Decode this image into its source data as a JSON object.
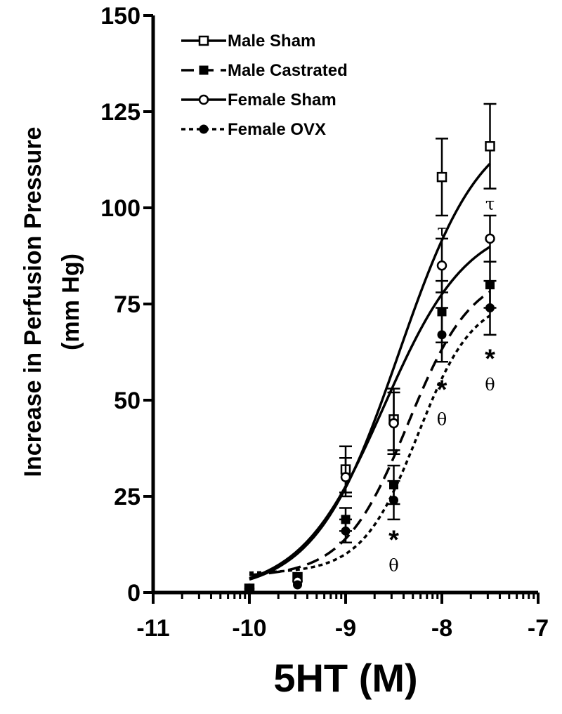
{
  "chart_data": {
    "type": "line",
    "xlabel": "5HT (M)",
    "ylabel_line1": "Increase in Perfusion Pressure",
    "ylabel_line2": "(mm Hg)",
    "xlim": [
      -11,
      -7
    ],
    "ylim": [
      0,
      150
    ],
    "x_ticks": [
      "-11",
      "-10",
      "-9",
      "-8",
      "-7"
    ],
    "y_ticks": [
      "0",
      "25",
      "50",
      "75",
      "100",
      "125",
      "150"
    ],
    "legend_position": "top-left",
    "series": [
      {
        "name": "Male Sham",
        "marker": "open-square",
        "line": "solid",
        "x": [
          -10,
          -9.5,
          -9,
          -8.5,
          -8,
          -7.5
        ],
        "y": [
          1,
          4,
          32,
          45,
          108,
          116
        ],
        "err": [
          0,
          0,
          6,
          8,
          10,
          11
        ],
        "fit": {
          "bottom": 0,
          "top": 124,
          "ec50": -8.45,
          "hill": 1.0
        }
      },
      {
        "name": "Male Castrated",
        "marker": "filled-square",
        "line": "dashed",
        "x": [
          -10,
          -9.5,
          -9,
          -8.5,
          -8,
          -7.5
        ],
        "y": [
          1,
          4,
          19,
          28,
          73,
          80
        ],
        "err": [
          0,
          0,
          3,
          5,
          8,
          6
        ],
        "fit": {
          "bottom": 4,
          "top": 84,
          "ec50": -8.35,
          "hill": 1.3
        }
      },
      {
        "name": "Female Sham",
        "marker": "open-circle",
        "line": "solid",
        "x": [
          -10,
          -9.5,
          -9,
          -8.5,
          -8,
          -7.5
        ],
        "y": [
          1,
          3,
          30,
          44,
          85,
          92
        ],
        "err": [
          0,
          0,
          5,
          8,
          7,
          6
        ],
        "fit": {
          "bottom": 0,
          "top": 97,
          "ec50": -8.6,
          "hill": 1.0
        }
      },
      {
        "name": "Female OVX",
        "marker": "filled-circle",
        "line": "dotted",
        "x": [
          -10,
          -9.5,
          -9,
          -8.5,
          -8,
          -7.5
        ],
        "y": [
          1,
          2,
          16,
          24,
          67,
          74
        ],
        "err": [
          0,
          0,
          3,
          5,
          7,
          7
        ],
        "fit": {
          "bottom": 5,
          "top": 77,
          "ec50": -8.25,
          "hill": 1.5
        }
      }
    ],
    "annotations": [
      {
        "text": "τ",
        "x": -8,
        "y": 94,
        "kind": "greek"
      },
      {
        "text": "τ",
        "x": -7.5,
        "y": 101,
        "kind": "greek"
      },
      {
        "text": "*",
        "x": -8.5,
        "y": 14,
        "kind": "star"
      },
      {
        "text": "θ",
        "x": -8.5,
        "y": 7,
        "kind": "greek"
      },
      {
        "text": "*",
        "x": -8,
        "y": 53,
        "kind": "star"
      },
      {
        "text": "θ",
        "x": -8,
        "y": 45,
        "kind": "greek"
      },
      {
        "text": "*",
        "x": -7.5,
        "y": 61,
        "kind": "star"
      },
      {
        "text": "θ",
        "x": -7.5,
        "y": 54,
        "kind": "greek"
      }
    ]
  }
}
